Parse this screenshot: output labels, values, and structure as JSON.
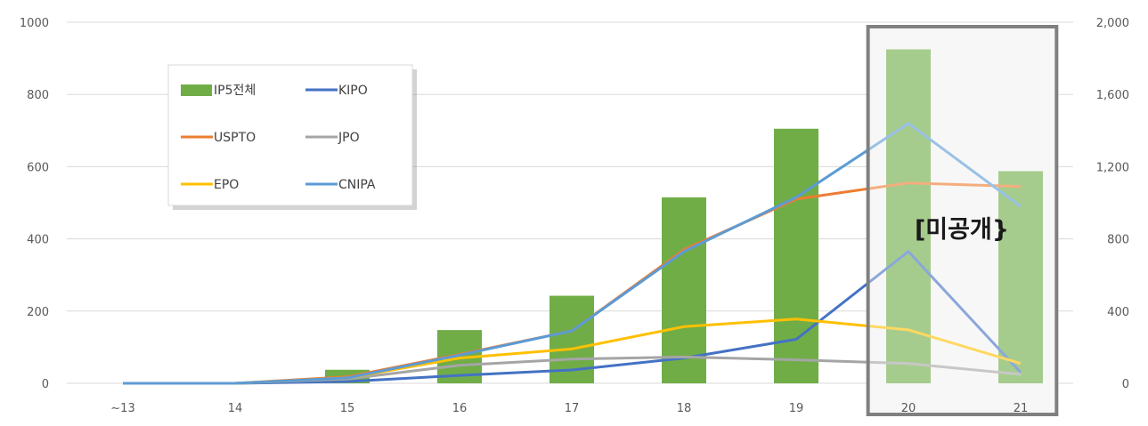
{
  "chart_data": {
    "type": "bar",
    "categories": [
      "~13",
      "14",
      "15",
      "16",
      "17",
      "18",
      "19",
      "20",
      "21"
    ],
    "y_left": {
      "ticks": [
        "0",
        "200",
        "400",
        "600",
        "800",
        "1000"
      ],
      "range": [
        0,
        1000
      ]
    },
    "y_right": {
      "ticks": [
        "0",
        "400",
        "800",
        "1,200",
        "1,600",
        "2,000"
      ],
      "range": [
        0,
        2000
      ]
    },
    "grid": true,
    "legend_position": "top-left",
    "bars": {
      "name": "IP5전체",
      "axis": "right",
      "color": "#70ad47",
      "values": [
        0,
        0,
        75,
        295,
        485,
        1030,
        1410,
        1850,
        1175
      ]
    },
    "lines": [
      {
        "name": "KIPO",
        "axis": "left",
        "color": "#4472c4",
        "values": [
          0,
          0,
          5,
          22,
          37,
          70,
          122,
          365,
          30
        ]
      },
      {
        "name": "USPTO",
        "axis": "left",
        "color": "#ed7d31",
        "values": [
          0,
          0,
          18,
          80,
          145,
          370,
          510,
          555,
          545
        ]
      },
      {
        "name": "JPO",
        "axis": "left",
        "color": "#a5a5a5",
        "values": [
          0,
          0,
          12,
          50,
          67,
          73,
          65,
          55,
          25
        ]
      },
      {
        "name": "EPO",
        "axis": "left",
        "color": "#ffc000",
        "values": [
          0,
          0,
          15,
          70,
          95,
          157,
          178,
          148,
          55
        ]
      },
      {
        "name": "CNIPA",
        "axis": "left",
        "color": "#5b9bd5",
        "values": [
          0,
          0,
          15,
          78,
          145,
          365,
          515,
          720,
          490
        ]
      }
    ],
    "unpublished_categories": [
      "20",
      "21"
    ],
    "annotation": "[미공개}",
    "legend": [
      "IP5전체",
      "KIPO",
      "USPTO",
      "JPO",
      "EPO",
      "CNIPA"
    ]
  }
}
